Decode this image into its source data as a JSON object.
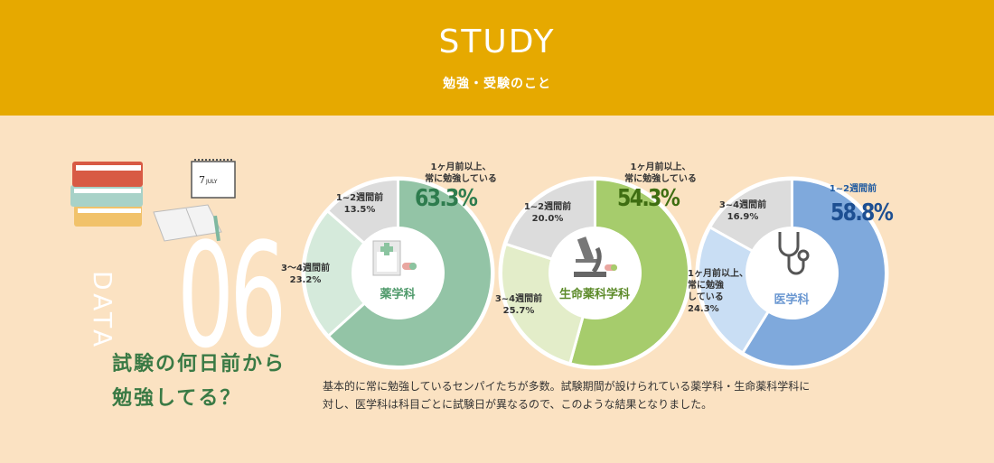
{
  "header": {
    "title": "STUDY",
    "subtitle": "勉強・受験のこと"
  },
  "section": {
    "label": "DATA",
    "number": "06"
  },
  "question": {
    "line1": "試験の何日前から",
    "line2": "勉強してる？"
  },
  "description": {
    "line1": "基本的に常に勉強しているセンパイたちが多数。試験期間が設けられている薬学科・生命薬科学科に",
    "line2": "対し、医学科は科目ごとに試験日が異なるので、このような結果となりました。"
  },
  "colors": {
    "header": "#e6a900",
    "background": "#fbe2c2",
    "pharm_main": "#93c4a6",
    "pharm_mid": "#d5eadb",
    "pharm_light": "#dcdcdc",
    "life_main": "#a6cc6c",
    "life_mid": "#e3edc9",
    "life_light": "#dcdcdc",
    "med_main": "#7fa9dc",
    "med_mid": "#c9def4",
    "med_light": "#dcdcdc"
  },
  "chart_data": [
    {
      "type": "pie",
      "center_label": "薬学科",
      "slices": [
        {
          "label": "1ヶ月前以上、常に勉強している",
          "value": 63.3,
          "value_text": "63.3%"
        },
        {
          "label": "3〜4週間前",
          "value": 23.2,
          "value_text": "23.2%"
        },
        {
          "label": "1~2週間前",
          "value": 13.5,
          "value_text": "13.5%"
        }
      ]
    },
    {
      "type": "pie",
      "center_label": "生命薬科学科",
      "slices": [
        {
          "label": "1ヶ月前以上、常に勉強している",
          "value": 54.3,
          "value_text": "54.3%"
        },
        {
          "label": "3~4週間前",
          "value": 25.7,
          "value_text": "25.7%"
        },
        {
          "label": "1~2週間前",
          "value": 20.0,
          "value_text": "20.0%"
        }
      ]
    },
    {
      "type": "pie",
      "center_label": "医学科",
      "slices": [
        {
          "label": "1~2週間前",
          "value": 58.8,
          "value_text": "58.8%"
        },
        {
          "label": "1ヶ月前以上、常に勉強している",
          "value": 24.3,
          "value_text": "24.3%"
        },
        {
          "label": "3~4週間前",
          "value": 16.9,
          "value_text": "16.9%"
        }
      ]
    }
  ],
  "labels": {
    "pharm": {
      "main_l1": "1ヶ月前以上、",
      "main_l2": "常に勉強している",
      "mid_l1": "3〜4週間前",
      "light_l1": "1~2週間前"
    },
    "life": {
      "main_l1": "1ヶ月前以上、",
      "main_l2": "常に勉強している",
      "mid_l1": "3~4週間前",
      "light_l1": "1~2週間前"
    },
    "med": {
      "main_l1": "1~2週間前",
      "mid_l1": "1ヶ月前以上、",
      "mid_l2": "常に勉強",
      "mid_l3": "している",
      "light_l1": "3~4週間前"
    }
  }
}
